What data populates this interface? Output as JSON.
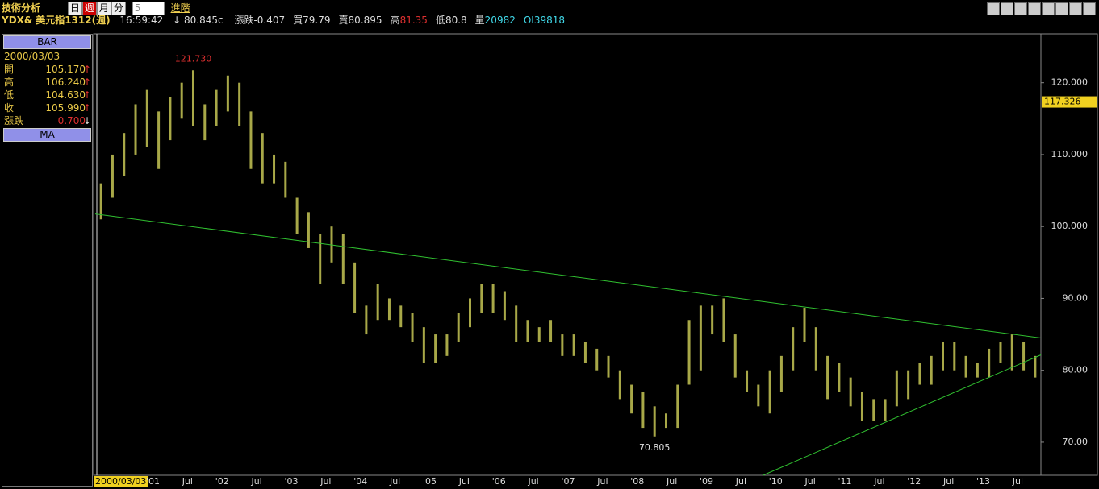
{
  "toolbar": {
    "title": "技術分析",
    "periods": [
      "日",
      "週",
      "月",
      "分"
    ],
    "interval": "5",
    "advanced": "進階"
  },
  "quote": {
    "symbol": "YDX&",
    "name": "美元指1312(週)",
    "time": "16:59:42",
    "arrow": "↓",
    "last": "80.845c",
    "fields": [
      {
        "label": "漲跌",
        "value": "-0.407"
      },
      {
        "label": "買",
        "value": "79.79"
      },
      {
        "label": "賣",
        "value": "80.895"
      },
      {
        "label": "高",
        "value": "81.35"
      },
      {
        "label": "低",
        "value": "80.8"
      },
      {
        "label": "量",
        "value": "20982"
      },
      {
        "label": "OI",
        "value": "39818"
      }
    ]
  },
  "info_panel": {
    "header": "BAR",
    "date": "2000/03/03",
    "rows": [
      {
        "label": "開",
        "value": "105.170",
        "arrow": "↑"
      },
      {
        "label": "高",
        "value": "106.240",
        "arrow": "↑"
      },
      {
        "label": "低",
        "value": "104.630",
        "arrow": "↑"
      },
      {
        "label": "收",
        "value": "105.990",
        "arrow": "↑"
      },
      {
        "label": "漲跌",
        "value": "0.700",
        "arrow": "↓"
      }
    ],
    "footer": "MA"
  },
  "chart_data": {
    "type": "ohlc",
    "color": "#a8a848",
    "high": [
      106,
      110,
      113,
      117,
      119,
      116,
      118,
      120,
      121.73,
      117,
      119,
      121,
      120,
      116,
      113,
      110,
      109,
      104,
      102,
      99,
      100,
      99,
      95,
      89,
      92,
      90,
      89,
      88,
      86,
      85,
      85,
      88,
      90,
      92,
      92,
      91,
      89,
      87,
      86,
      87,
      85,
      85,
      84,
      83,
      82,
      80,
      78,
      77,
      75,
      74,
      78,
      87,
      89,
      89,
      90,
      85,
      80,
      78,
      80,
      82,
      86,
      88.7,
      86,
      82,
      81,
      79,
      77,
      76,
      76,
      80,
      80,
      81,
      82,
      84,
      84,
      82,
      81,
      83,
      84,
      85,
      84,
      82
    ],
    "low": [
      101,
      104,
      107,
      110,
      111,
      108,
      112,
      115,
      114,
      112,
      114,
      116,
      114,
      108,
      106,
      106,
      104,
      99,
      97,
      92,
      95,
      92,
      88,
      85,
      87,
      87,
      86,
      84,
      81,
      81,
      82,
      84,
      86,
      88,
      88,
      87,
      84,
      84,
      84,
      84,
      82,
      82,
      81,
      80,
      79,
      76,
      74,
      72,
      70.805,
      72,
      72,
      78,
      80,
      85,
      84,
      79,
      77,
      75,
      74,
      77,
      80,
      84,
      80,
      76,
      77,
      75,
      73,
      73,
      73,
      75,
      76,
      78,
      78,
      80,
      80,
      79,
      79,
      79,
      81,
      80,
      80,
      79
    ],
    "ylim": [
      65.4,
      126.8
    ],
    "yticks": [
      {
        "value": 70,
        "label": "70.00"
      },
      {
        "value": 80,
        "label": "80.00"
      },
      {
        "value": 90,
        "label": "90.00"
      },
      {
        "value": 100,
        "label": "100.000"
      },
      {
        "value": 110,
        "label": "110.000"
      },
      {
        "value": 120,
        "label": "120.000"
      }
    ],
    "start_label": "2000/03/03",
    "xticks": [
      "'01",
      "Jul",
      "'02",
      "Jul",
      "'03",
      "Jul",
      "'04",
      "Jul",
      "'05",
      "Jul",
      "'06",
      "Jul",
      "'07",
      "Jul",
      "'08",
      "Jul",
      "'09",
      "Jul",
      "'10",
      "Jul",
      "'11",
      "Jul",
      "'12",
      "Jul",
      "'13",
      "Jul"
    ],
    "max_label": {
      "value": 121.73,
      "label": "121.730"
    },
    "min_label": {
      "value": 70.805,
      "label": "70.805"
    },
    "hline": {
      "value": 117.326,
      "label": "117.326",
      "color": "#a8e8e8"
    },
    "trendlines": [
      {
        "x": [
          0,
          82
        ],
        "values": [
          101.75,
          84.5
        ],
        "color": "#30c030"
      },
      {
        "x": [
          57.9,
          82
        ],
        "values": [
          65.4,
          82.15
        ],
        "color": "#30c030"
      }
    ]
  }
}
